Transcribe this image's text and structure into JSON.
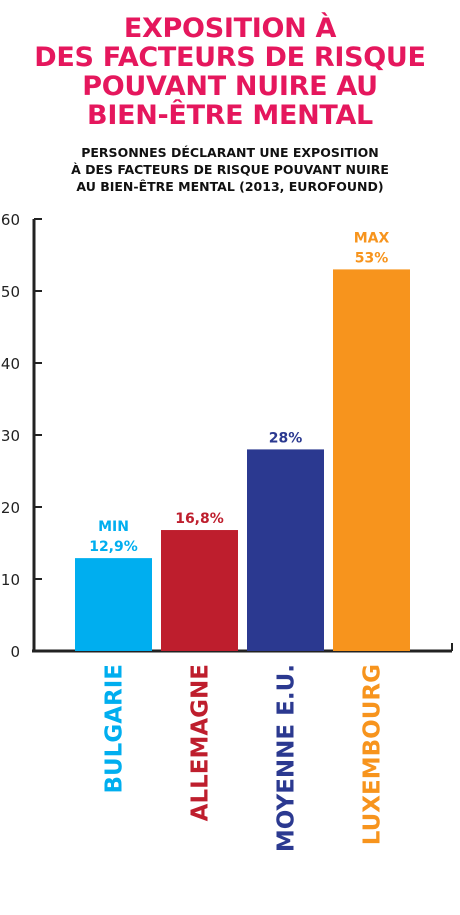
{
  "title_lines": [
    "EXPOSITION À",
    "DES FACTEURS DE RISQUE",
    "POUVANT NUIRE AU",
    "BIEN-ÊTRE MENTAL"
  ],
  "subtitle_lines": [
    "PERSONNES DÉCLARANT UNE EXPOSITION",
    "À DES FACTEURS DE RISQUE POUVANT NUIRE",
    "AU BIEN-ÊTRE MENTAL (2013, EUROFOUND)"
  ],
  "colors": {
    "title": "#e5175d",
    "axis": "#222222",
    "bulgarie": "#00aeef",
    "allemagne": "#be1e2d",
    "moyenne": "#2b3990",
    "luxembourg": "#f7941d"
  },
  "chart_data": {
    "type": "bar",
    "categories": [
      "BULGARIE",
      "ALLEMAGNE",
      "MOYENNE E.U.",
      "LUXEMBOURG"
    ],
    "values": [
      12.9,
      16.8,
      28,
      53
    ],
    "value_labels": [
      "12,9%",
      "16,8%",
      "28%",
      "53%"
    ],
    "extra_labels": [
      "MIN",
      "",
      "",
      "MAX"
    ],
    "bar_colors": [
      "#00aeef",
      "#be1e2d",
      "#2b3990",
      "#f7941d"
    ],
    "yticks": [
      "0",
      "10",
      "20",
      "30",
      "40",
      "50",
      "60"
    ],
    "ylim": [
      0,
      60
    ],
    "grid": false
  }
}
